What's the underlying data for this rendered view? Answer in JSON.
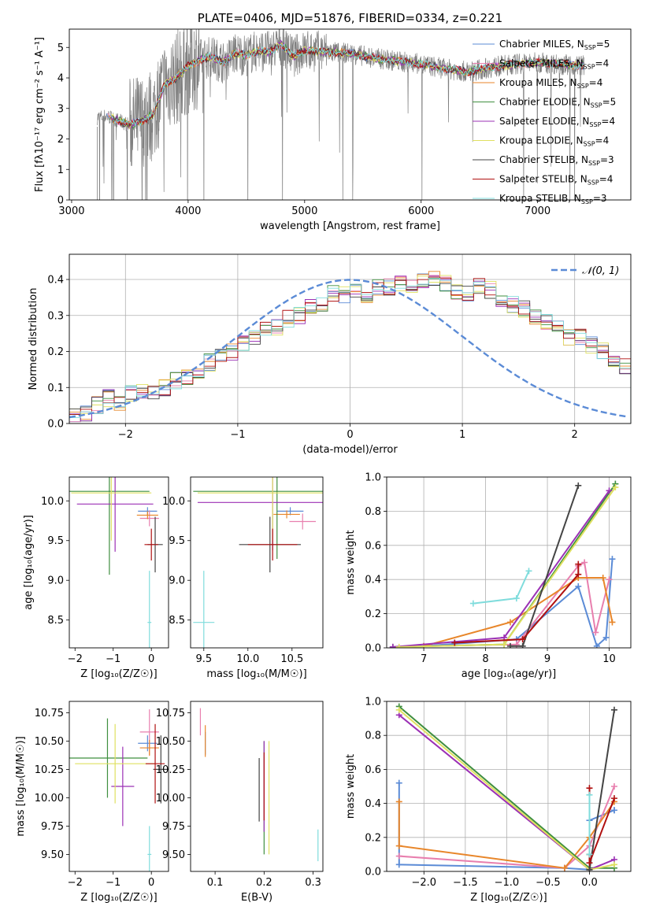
{
  "title": "PLATE=0406, MJD=51876, FIBERID=0334, z=0.221",
  "colors": {
    "Chabrier MILES": "#5b8bd6",
    "Salpeter MILES": "#e87fae",
    "Kroupa MILES": "#e8862a",
    "Chabrier ELODIE": "#3f8f3f",
    "Salpeter ELODIE": "#9b30b5",
    "Kroupa ELODIE": "#dfe060",
    "Chabrier STELIB": "#444444",
    "Salpeter STELIB": "#b01010",
    "Kroupa STELIB": "#7fdcdc",
    "data": "#808080"
  },
  "chart_data": [
    {
      "id": "spectrum",
      "type": "line",
      "title": "PLATE=0406, MJD=51876, FIBERID=0334, z=0.221",
      "xlabel": "wavelength [Angstrom, rest frame]",
      "ylabel": "Flux [fλ10⁻¹⁷ erg cm⁻² s⁻¹ A⁻¹]",
      "xlim": [
        2980,
        7800
      ],
      "ylim": [
        0,
        5.6
      ],
      "xticks": [
        3000,
        4000,
        5000,
        6000,
        7000
      ],
      "yticks": [
        0,
        1,
        2,
        3,
        4,
        5
      ],
      "legend_position": "top-right",
      "legend": [
        "Chabrier MILES, N_SSP=5",
        "Salpeter MILES, N_SSP=4",
        "Kroupa MILES, N_SSP=4",
        "Chabrier ELODIE, N_SSP=5",
        "Salpeter ELODIE, N_SSP=4",
        "Kroupa ELODIE, N_SSP=4",
        "Chabrier STELIB, N_SSP=3",
        "Salpeter STELIB, N_SSP=4",
        "Kroupa STELIB, N_SSP=3"
      ],
      "model_continuum": {
        "x": [
          3220,
          3300,
          3400,
          3500,
          3600,
          3700,
          3800,
          3900,
          4000,
          4100,
          4200,
          4300,
          4400,
          4500,
          4600,
          4700,
          4800,
          4900,
          5000,
          5200,
          5400,
          5600,
          5800,
          6000,
          6200,
          6400,
          6600,
          6800,
          7000,
          7200,
          7400
        ],
        "y": [
          2.7,
          2.75,
          2.6,
          2.45,
          2.6,
          2.8,
          3.8,
          4.0,
          4.4,
          4.6,
          4.7,
          4.5,
          4.8,
          4.75,
          4.9,
          4.85,
          5.1,
          4.7,
          4.9,
          4.85,
          4.8,
          4.65,
          4.55,
          4.45,
          4.3,
          4.2,
          4.35,
          4.45,
          4.5,
          4.45,
          4.4
        ]
      }
    },
    {
      "id": "residuals",
      "type": "bar",
      "title": "",
      "xlabel": "(data-model)/error",
      "ylabel": "Normed distribution",
      "xlim": [
        -2.5,
        2.5
      ],
      "ylim": [
        0,
        0.47
      ],
      "xticks": [
        -2,
        -1,
        0,
        1,
        2
      ],
      "yticks": [
        0.0,
        0.1,
        0.2,
        0.3,
        0.4
      ],
      "grid": true,
      "legend_position": "top-right",
      "legend": [
        "𝒩(0, 1)"
      ],
      "bin_width": 0.1,
      "bin_centers_range": [
        -2.45,
        2.45
      ],
      "base_values": [
        0.02,
        0.03,
        0.05,
        0.07,
        0.06,
        0.08,
        0.09,
        0.09,
        0.1,
        0.12,
        0.13,
        0.15,
        0.17,
        0.19,
        0.2,
        0.22,
        0.24,
        0.26,
        0.27,
        0.29,
        0.3,
        0.32,
        0.33,
        0.36,
        0.36,
        0.37,
        0.36,
        0.38,
        0.38,
        0.39,
        0.38,
        0.4,
        0.4,
        0.39,
        0.37,
        0.36,
        0.38,
        0.37,
        0.34,
        0.33,
        0.32,
        0.3,
        0.28,
        0.27,
        0.24,
        0.24,
        0.22,
        0.2,
        0.17,
        0.16
      ]
    },
    {
      "id": "age-vs-Z",
      "type": "scatter",
      "xlabel": "Z [log₁₀(Z/Z☉)]",
      "ylabel": "age  [log₁₀(age/yr)]",
      "xlim": [
        -2.15,
        0.45
      ],
      "ylim": [
        8.15,
        10.3
      ],
      "xticks": [
        -2,
        -1,
        0
      ],
      "yticks": [
        8.5,
        9.0,
        9.5,
        10.0
      ],
      "points": [
        {
          "m": "Chabrier MILES",
          "x": -0.1,
          "xe": 0.25,
          "y": 9.87,
          "ye": 0.05
        },
        {
          "m": "Salpeter MILES",
          "x": -0.05,
          "xe": 0.25,
          "y": 9.78,
          "ye": 0.1
        },
        {
          "m": "Kroupa MILES",
          "x": -0.1,
          "xe": 0.28,
          "y": 9.82,
          "ye": 0.05
        },
        {
          "m": "Chabrier ELODIE",
          "x": -1.1,
          "xe": 1.05,
          "y": 10.12,
          "ye": 1.05
        },
        {
          "m": "Salpeter ELODIE",
          "x": -0.95,
          "xe": 1.0,
          "y": 9.96,
          "ye": 0.6
        },
        {
          "m": "Kroupa ELODIE",
          "x": -1.05,
          "xe": 1.05,
          "y": 10.1,
          "ye": 0.6
        },
        {
          "m": "Chabrier STELIB",
          "x": 0.1,
          "xe": 0.2,
          "y": 9.45,
          "ye": 0.35
        },
        {
          "m": "Salpeter STELIB",
          "x": 0.0,
          "xe": 0.18,
          "y": 9.45,
          "ye": 0.2
        },
        {
          "m": "Kroupa STELIB",
          "x": -0.05,
          "xe": 0.05,
          "y": 8.47,
          "ye": 0.65
        }
      ]
    },
    {
      "id": "age-vs-mass",
      "type": "scatter",
      "xlabel": "mass [log₁₀(M/M☉)]",
      "ylabel": "",
      "xlim": [
        9.35,
        10.85
      ],
      "ylim": [
        8.15,
        10.3
      ],
      "xticks": [
        9.5,
        10.0,
        10.5
      ],
      "yticks": [
        8.5,
        9.0,
        9.5,
        10.0
      ],
      "points": [
        {
          "m": "Chabrier MILES",
          "x": 10.48,
          "xe": 0.15,
          "y": 9.87,
          "ye": 0.05
        },
        {
          "m": "Salpeter MILES",
          "x": 10.62,
          "xe": 0.15,
          "y": 9.74,
          "ye": 0.1
        },
        {
          "m": "Kroupa MILES",
          "x": 10.44,
          "xe": 0.15,
          "y": 9.83,
          "ye": 0.05
        },
        {
          "m": "Chabrier ELODIE",
          "x": 10.33,
          "xe": 0.95,
          "y": 10.12,
          "ye": 0.85
        },
        {
          "m": "Salpeter ELODIE",
          "x": 10.28,
          "xe": 0.85,
          "y": 9.98,
          "ye": 0.6
        },
        {
          "m": "Kroupa ELODIE",
          "x": 10.28,
          "xe": 0.85,
          "y": 10.1,
          "ye": 0.6
        },
        {
          "m": "Chabrier STELIB",
          "x": 10.25,
          "xe": 0.35,
          "y": 9.45,
          "ye": 0.35
        },
        {
          "m": "Salpeter STELIB",
          "x": 10.28,
          "xe": 0.28,
          "y": 9.45,
          "ye": 0.2
        },
        {
          "m": "Kroupa STELIB",
          "x": 9.5,
          "xe": 0.12,
          "y": 8.47,
          "ye": 0.65
        }
      ]
    },
    {
      "id": "weight-vs-age",
      "type": "line",
      "xlabel": "age  [log₁₀(age/yr)]",
      "ylabel": "mass weight",
      "xlim": [
        6.4,
        10.35
      ],
      "ylim": [
        0,
        1.0
      ],
      "xticks": [
        7,
        8,
        9,
        10
      ],
      "yticks": [
        0.0,
        0.2,
        0.4,
        0.6,
        0.8,
        1.0
      ],
      "grid": true,
      "series": [
        {
          "m": "Kroupa STELIB",
          "x": [
            7.8,
            8.5,
            8.7
          ],
          "y": [
            0.26,
            0.29,
            0.45
          ]
        },
        {
          "m": "Chabrier MILES",
          "x": [
            7.0,
            8.5,
            9.5,
            9.8,
            9.95,
            10.05
          ],
          "y": [
            0.01,
            0.05,
            0.36,
            0.01,
            0.06,
            0.52
          ]
        },
        {
          "m": "Salpeter MILES",
          "x": [
            7.0,
            8.5,
            9.5,
            9.6,
            9.78,
            10.0
          ],
          "y": [
            0.01,
            0.02,
            0.48,
            0.5,
            0.09,
            0.4
          ]
        },
        {
          "m": "Kroupa MILES",
          "x": [
            7.0,
            8.4,
            9.5,
            9.9,
            10.05
          ],
          "y": [
            0.01,
            0.15,
            0.41,
            0.41,
            0.15
          ]
        },
        {
          "m": "Chabrier ELODIE",
          "x": [
            6.5,
            8.3,
            10.1
          ],
          "y": [
            0.005,
            0.02,
            0.96
          ]
        },
        {
          "m": "Salpeter ELODIE",
          "x": [
            6.5,
            8.3,
            10.0
          ],
          "y": [
            0.005,
            0.06,
            0.92
          ]
        },
        {
          "m": "Kroupa ELODIE",
          "x": [
            6.6,
            8.3,
            10.1
          ],
          "y": [
            0.005,
            0.02,
            0.94
          ]
        },
        {
          "m": "Chabrier STELIB",
          "x": [
            8.4,
            8.6,
            9.5
          ],
          "y": [
            0.01,
            0.01,
            0.95
          ]
        },
        {
          "m": "Salpeter STELIB",
          "x": [
            7.5,
            8.6,
            9.5,
            9.5
          ],
          "y": [
            0.03,
            0.05,
            0.43,
            0.49
          ]
        }
      ]
    },
    {
      "id": "mass-vs-Z",
      "type": "scatter",
      "xlabel": "Z [log₁₀(Z/Z☉)]",
      "ylabel": "mass [log₁₀(M/M☉)]",
      "xlim": [
        -2.15,
        0.45
      ],
      "ylim": [
        9.35,
        10.85
      ],
      "xticks": [
        -2,
        -1,
        0
      ],
      "yticks": [
        9.5,
        9.75,
        10.0,
        10.25,
        10.5,
        10.75
      ],
      "points": [
        {
          "m": "Chabrier MILES",
          "x": -0.1,
          "xe": 0.25,
          "y": 10.48,
          "ye": 0.07
        },
        {
          "m": "Salpeter MILES",
          "x": -0.05,
          "xe": 0.25,
          "y": 10.58,
          "ye": 0.2
        },
        {
          "m": "Kroupa MILES",
          "x": -0.05,
          "xe": 0.25,
          "y": 10.44,
          "ye": 0.07
        },
        {
          "m": "Chabrier ELODIE",
          "x": -1.15,
          "xe": 1.05,
          "y": 10.35,
          "ye": 0.35
        },
        {
          "m": "Salpeter ELODIE",
          "x": -0.75,
          "xe": 0.3,
          "y": 10.1,
          "ye": 0.35
        },
        {
          "m": "Kroupa ELODIE",
          "x": -0.95,
          "xe": 1.05,
          "y": 10.3,
          "ye": 0.35
        },
        {
          "m": "Chabrier STELIB",
          "x": 0.25,
          "xe": 0.2,
          "y": 10.25,
          "ye": 0.3
        },
        {
          "m": "Salpeter STELIB",
          "x": 0.1,
          "xe": 0.25,
          "y": 10.3,
          "ye": 0.35
        },
        {
          "m": "Kroupa STELIB",
          "x": -0.05,
          "xe": 0.05,
          "y": 9.5,
          "ye": 0.25
        }
      ]
    },
    {
      "id": "mass-vs-EBV",
      "type": "scatter",
      "xlabel": "E(B-V)",
      "ylabel": "",
      "xlim": [
        0.05,
        0.32
      ],
      "ylim": [
        9.35,
        10.85
      ],
      "xticks": [
        0.1,
        0.2,
        0.3
      ],
      "yticks": [
        9.5,
        9.75,
        10.0,
        10.25,
        10.5,
        10.75
      ],
      "points": [
        {
          "m": "Chabrier MILES",
          "x": 0.08,
          "xe": 0.0,
          "y": 10.48,
          "ye": 0.1
        },
        {
          "m": "Salpeter MILES",
          "x": 0.07,
          "xe": 0.0,
          "y": 10.67,
          "ye": 0.12
        },
        {
          "m": "Kroupa MILES",
          "x": 0.08,
          "xe": 0.0,
          "y": 10.5,
          "ye": 0.14
        },
        {
          "m": "Chabrier ELODIE",
          "x": 0.2,
          "xe": 0.0,
          "y": 10.0,
          "ye": 0.5
        },
        {
          "m": "Salpeter ELODIE",
          "x": 0.2,
          "xe": 0.0,
          "y": 10.1,
          "ye": 0.4
        },
        {
          "m": "Kroupa ELODIE",
          "x": 0.21,
          "xe": 0.0,
          "y": 10.0,
          "ye": 0.5
        },
        {
          "m": "Chabrier STELIB",
          "x": 0.19,
          "xe": 0.0,
          "y": 10.07,
          "ye": 0.28
        },
        {
          "m": "Salpeter STELIB",
          "x": 0.2,
          "xe": 0.0,
          "y": 10.1,
          "ye": 0.3
        },
        {
          "m": "Kroupa STELIB",
          "x": 0.31,
          "xe": 0.0,
          "y": 9.58,
          "ye": 0.14
        }
      ]
    },
    {
      "id": "weight-vs-Z",
      "type": "line",
      "xlabel": "Z [log₁₀(Z/Z☉)]",
      "ylabel": "mass weight",
      "xlim": [
        -2.45,
        0.5
      ],
      "ylim": [
        0,
        1.0
      ],
      "xticks": [
        -2.0,
        -1.5,
        -1.0,
        -0.5,
        0.0
      ],
      "yticks": [
        0.0,
        0.2,
        0.4,
        0.6,
        0.8,
        1.0
      ],
      "grid": true,
      "series": [
        {
          "m": "Chabrier MILES",
          "x": [
            -2.3,
            -2.3,
            -0.3,
            0.0,
            0.0,
            0.3,
            0.3
          ],
          "y": [
            0.52,
            0.04,
            0.02,
            0.01,
            0.3,
            0.36,
            0.36
          ]
        },
        {
          "m": "Salpeter MILES",
          "x": [
            -2.3,
            -0.3,
            0.0,
            0.3
          ],
          "y": [
            0.09,
            0.02,
            0.15,
            0.5
          ]
        },
        {
          "m": "Kroupa MILES",
          "x": [
            -2.3,
            -2.3,
            -0.3,
            0.0,
            0.3
          ],
          "y": [
            0.41,
            0.15,
            0.02,
            0.2,
            0.41
          ]
        },
        {
          "m": "Chabrier ELODIE",
          "x": [
            -2.3,
            0.0,
            0.3
          ],
          "y": [
            0.97,
            0.02,
            0.02
          ]
        },
        {
          "m": "Salpeter ELODIE",
          "x": [
            -2.3,
            0.0,
            0.3
          ],
          "y": [
            0.92,
            0.01,
            0.07
          ]
        },
        {
          "m": "Kroupa ELODIE",
          "x": [
            -2.3,
            0.0,
            0.3
          ],
          "y": [
            0.95,
            0.01,
            0.04
          ]
        },
        {
          "m": "Chabrier STELIB",
          "x": [
            0.0,
            0.0,
            0.3
          ],
          "y": [
            0.01,
            0.01,
            0.95
          ]
        },
        {
          "m": "Salpeter STELIB",
          "x": [
            0.0,
            0.0,
            0.0,
            0.3
          ],
          "y": [
            0.49,
            0.1,
            0.05,
            0.43
          ]
        },
        {
          "m": "Kroupa STELIB",
          "x": [
            0.0,
            0.0
          ],
          "y": [
            0.45,
            0.1
          ]
        }
      ]
    }
  ]
}
